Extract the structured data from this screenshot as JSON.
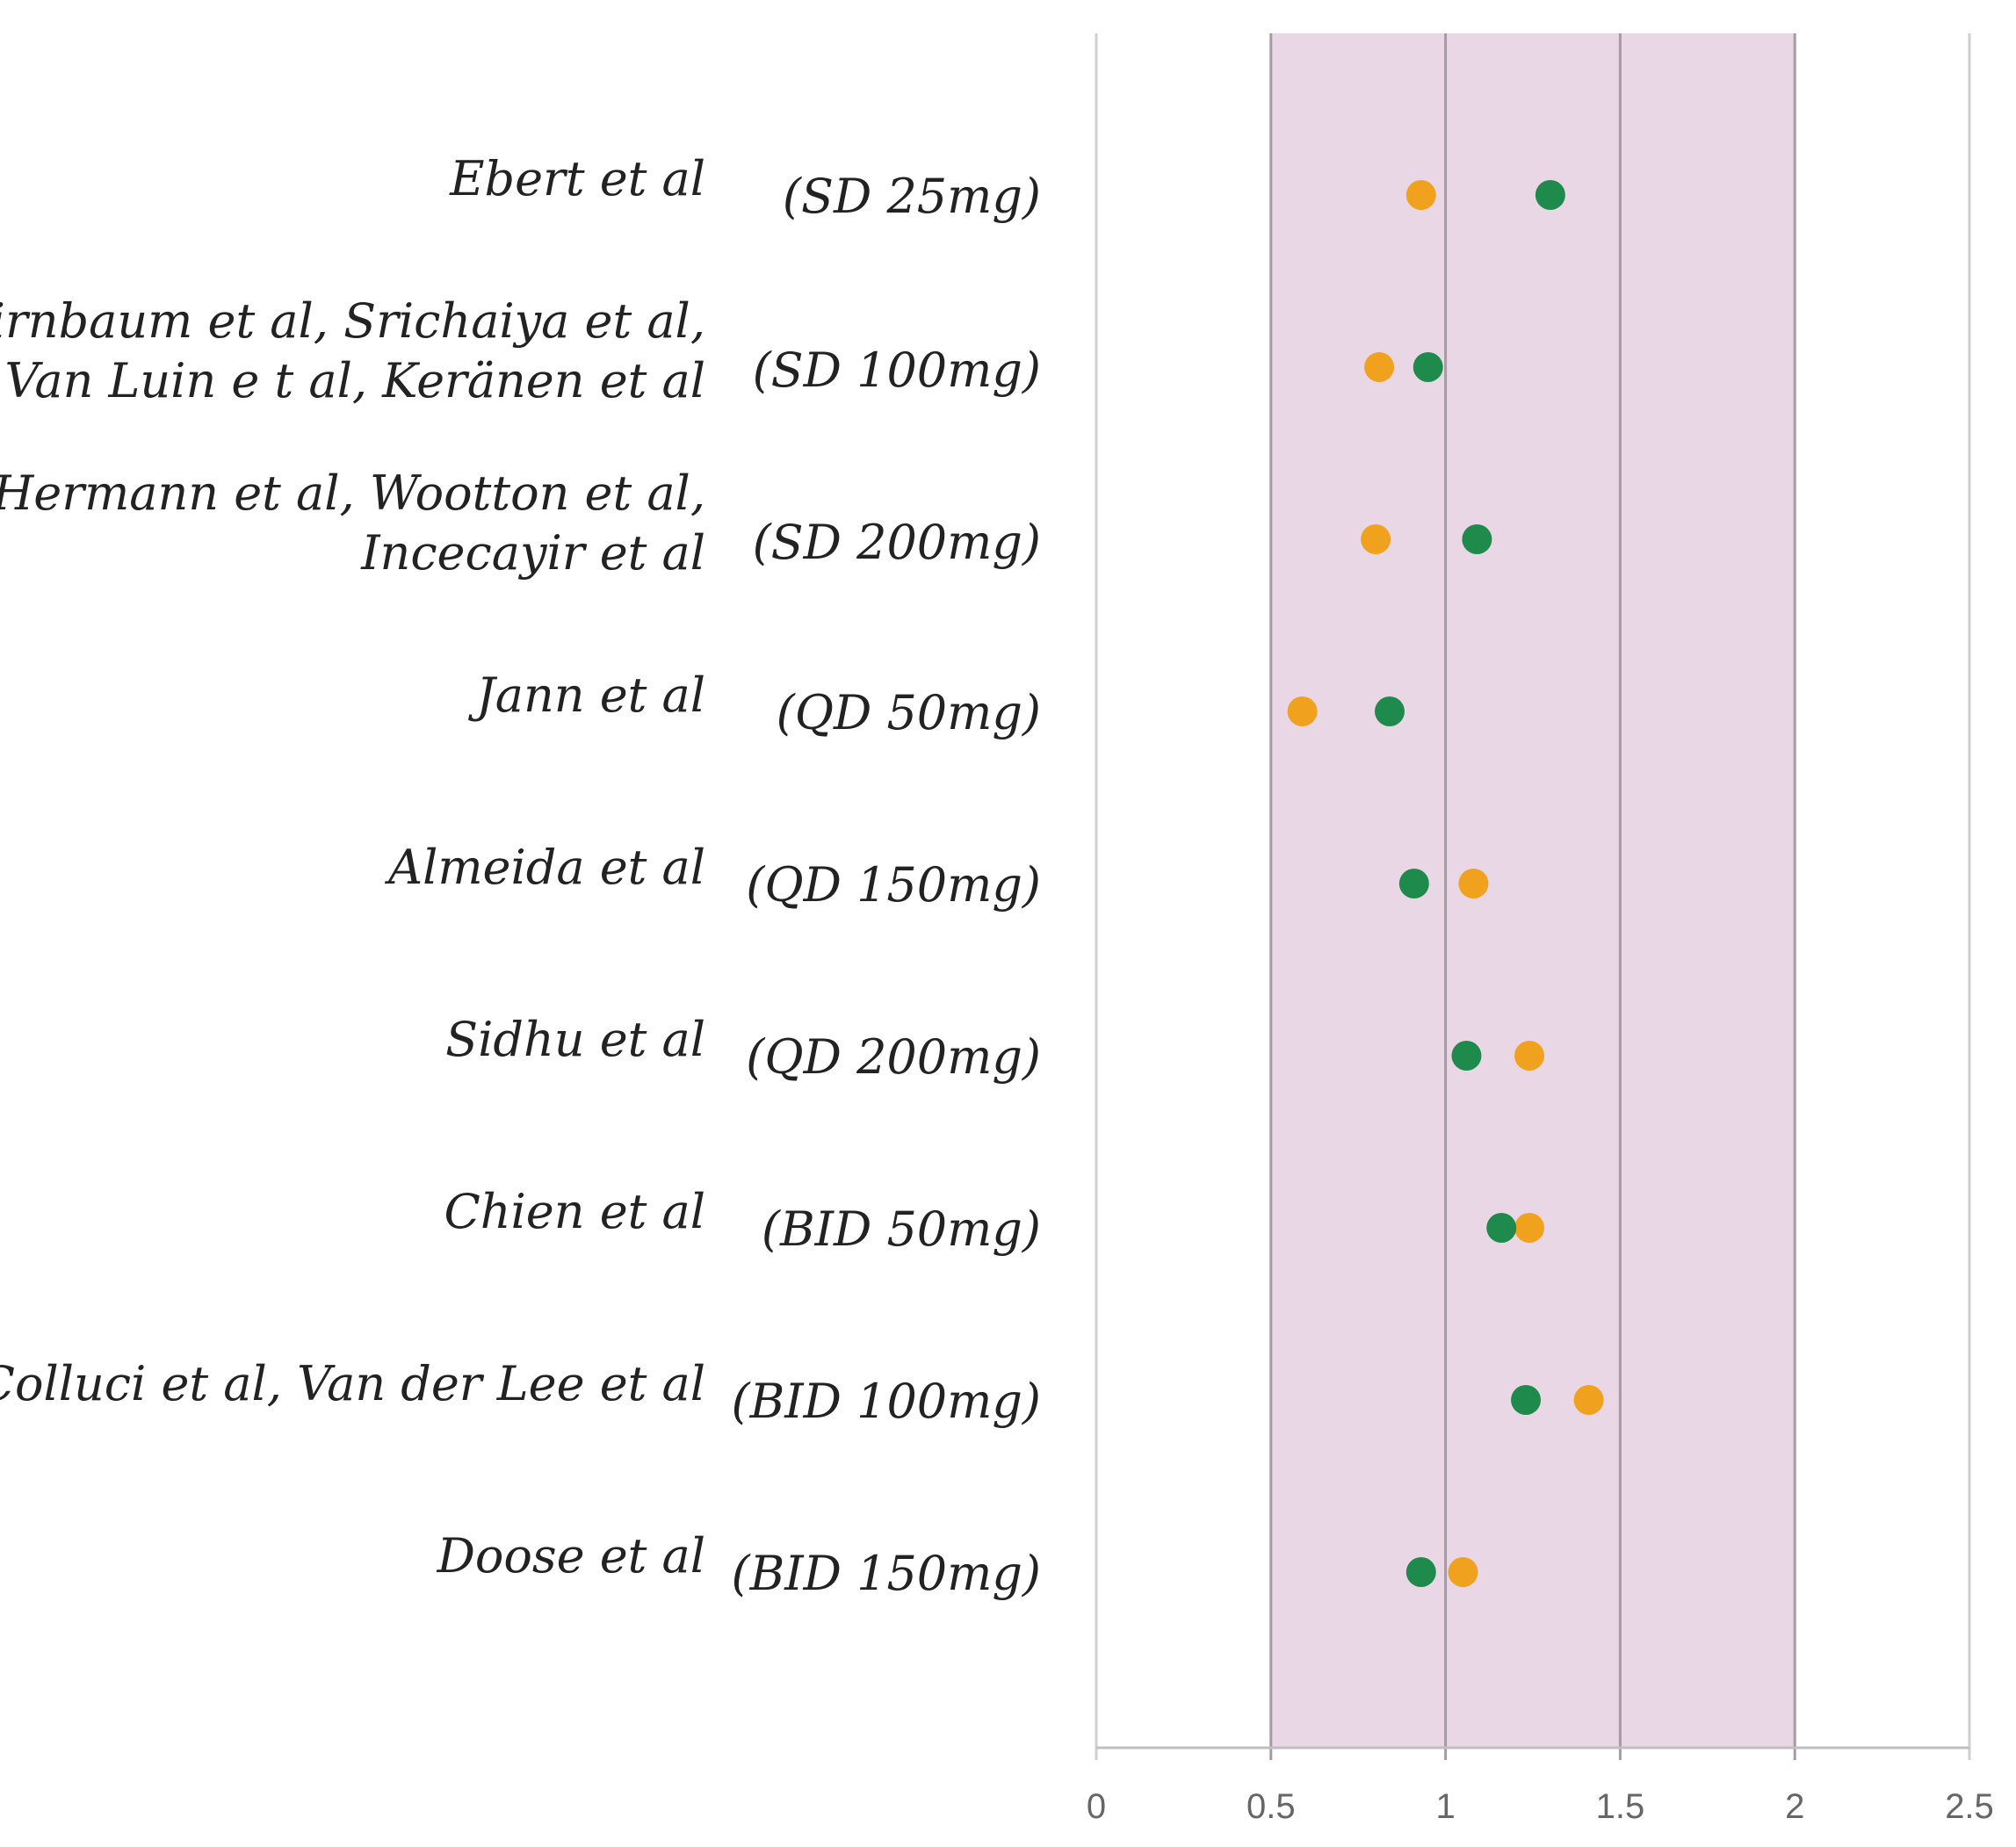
{
  "chart_data": {
    "type": "scatter",
    "title": "",
    "xlabel": "",
    "ylabel": "",
    "xlim": [
      0,
      2.5
    ],
    "x_ticks": [
      "0",
      "0.5",
      "1",
      "1.5",
      "2",
      "2.5"
    ],
    "shaded_band": {
      "from": 0.5,
      "to": 2.0,
      "color": "#ead7e5"
    },
    "grid": "vertical",
    "categories": [
      {
        "study": [
          "Ebert et al"
        ],
        "dose": "(SD 25mg)"
      },
      {
        "study": [
          "Birnbaum et al, Srichaiya et al,",
          "Van Luin e t al, Keränen et al"
        ],
        "dose": "(SD 100mg)"
      },
      {
        "study": [
          "Hermann et al, Wootton et al,",
          "Incecayir et al"
        ],
        "dose": "(SD 200mg)"
      },
      {
        "study": [
          "Jann et al"
        ],
        "dose": "(QD 50mg)"
      },
      {
        "study": [
          "Almeida et al"
        ],
        "dose": "(QD 150mg)"
      },
      {
        "study": [
          "Sidhu et al"
        ],
        "dose": "(QD 200mg)"
      },
      {
        "study": [
          "Chien et al"
        ],
        "dose": "(BID 50mg)"
      },
      {
        "study": [
          "Colluci et al, Van der Lee et al"
        ],
        "dose": "(BID 100mg)"
      },
      {
        "study": [
          "Doose et al"
        ],
        "dose": "(BID 150mg)"
      }
    ],
    "series": [
      {
        "color": "#f0a21e",
        "values": [
          0.93,
          0.81,
          0.8,
          0.59,
          1.08,
          1.24,
          1.24,
          1.41,
          1.05
        ]
      },
      {
        "color": "#1e8a4c",
        "values": [
          1.3,
          0.95,
          1.09,
          0.84,
          0.91,
          1.06,
          1.16,
          1.23,
          0.93
        ]
      }
    ]
  }
}
